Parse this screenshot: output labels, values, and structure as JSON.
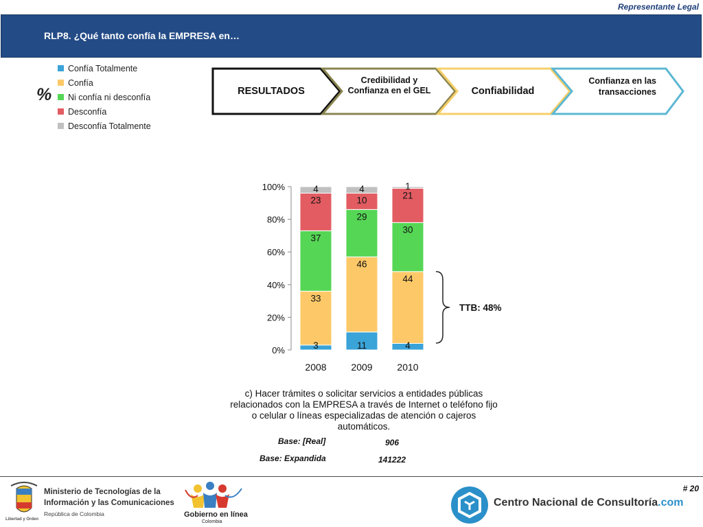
{
  "header": {
    "top_label": "Representante Legal",
    "title": "RLP8. ¿Qué tanto confía la EMPRESA en…"
  },
  "percent_symbol": "%",
  "legend": [
    {
      "label": "Confía Totalmente",
      "color": "#3aa3d8"
    },
    {
      "label": "Confía",
      "color": "#fdc968"
    },
    {
      "label": "Ni confía ni desconfía",
      "color": "#55d655"
    },
    {
      "label": "Desconfía",
      "color": "#e25c62"
    },
    {
      "label": "Desconfía Totalmente",
      "color": "#c0c0c0"
    }
  ],
  "steps": [
    {
      "label": "RESULTADOS",
      "border": "#111111"
    },
    {
      "label": "Credibilidad y Confianza en el GEL",
      "border": "#8a8550"
    },
    {
      "label": "Confiabilidad",
      "border": "#f5cf6a"
    },
    {
      "label": "Confianza en las transacciones",
      "border": "#5bb7d3"
    }
  ],
  "chart_data": {
    "type": "bar",
    "stacked": true,
    "categories": [
      "2008",
      "2009",
      "2010"
    ],
    "y_ticks": [
      "0%",
      "20%",
      "40%",
      "60%",
      "80%",
      "100%"
    ],
    "ylim": [
      0,
      100
    ],
    "series": [
      {
        "name": "Confía Totalmente",
        "color": "#3aa3d8",
        "values": [
          3,
          11,
          4
        ]
      },
      {
        "name": "Confía",
        "color": "#fdc968",
        "values": [
          33,
          46,
          44
        ]
      },
      {
        "name": "Ni confía ni desconfía",
        "color": "#55d655",
        "values": [
          37,
          29,
          30
        ]
      },
      {
        "name": "Desconfía",
        "color": "#e25c62",
        "values": [
          23,
          10,
          21
        ]
      },
      {
        "name": "Desconfía Totalmente",
        "color": "#c0c0c0",
        "values": [
          4,
          4,
          1
        ]
      }
    ],
    "annotation": "TTB: 48%"
  },
  "description": "c) Hacer trámites o solicitar servicios a entidades públicas relacionados con la EMPRESA a través de Internet o teléfono fijo o celular o líneas especializadas de atención o cajeros automáticos.",
  "bases": [
    {
      "label": "Base: [Real]",
      "value": "906"
    },
    {
      "label": "Base: Expandida",
      "value": "141222"
    }
  ],
  "footer": {
    "page_number": "# 20",
    "mintic_line1": "Ministerio de Tecnologías de la",
    "mintic_line2": "Información y las Comunicaciones",
    "mintic_line3": "República de Colombia",
    "escudo_motto": "Libertad y Orden",
    "gel_line1": "Gobierno en línea",
    "gel_line2": "Colombia",
    "cnc_text": "Centro Nacional de Consultoría",
    "cnc_suffix": ".com"
  }
}
